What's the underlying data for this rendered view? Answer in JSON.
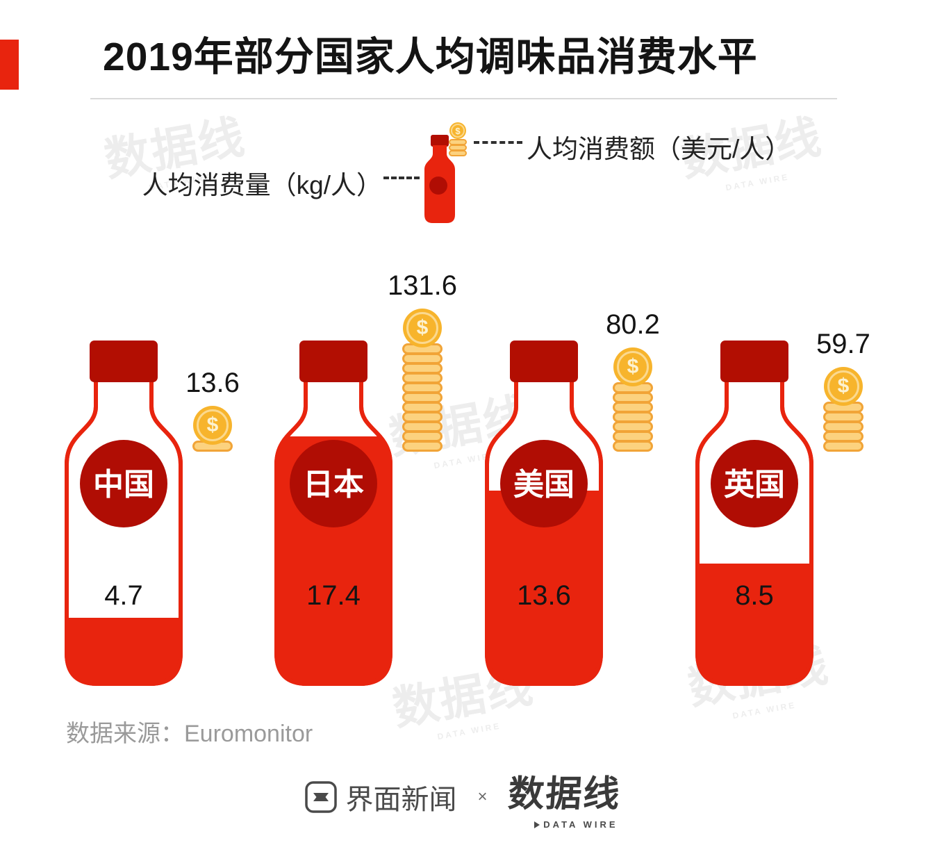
{
  "title": "2019年部分国家人均调味品消费水平",
  "legend": {
    "volume_label": "人均消费量（kg/人）",
    "value_label": "人均消费额（美元/人）"
  },
  "chart_data": {
    "type": "bar",
    "title": "2019年部分国家人均调味品消费水平",
    "categories": [
      "中国",
      "日本",
      "美国",
      "英国"
    ],
    "series": [
      {
        "name": "人均消费量（kg/人）",
        "unit": "kg/人",
        "values": [
          4.7,
          17.4,
          13.6,
          8.5
        ]
      },
      {
        "name": "人均消费额（美元/人）",
        "unit": "美元/人",
        "values": [
          13.6,
          131.6,
          80.2,
          59.7
        ]
      }
    ],
    "source": "Euromonitor",
    "legend_position": "top",
    "grid": false
  },
  "source_text": "数据来源：Euromonitor",
  "footer": {
    "jiemian_label": "界面新闻",
    "separator": "×",
    "datawire_cn": "数据线",
    "datawire_en": "DATA WIRE"
  },
  "watermark": {
    "cn": "数据线",
    "en": "DATA WIRE"
  },
  "icons": {
    "dollar": "$"
  },
  "colors": {
    "bottle_red": "#e8240e",
    "cap_dark_red": "#b20e02",
    "badge_dark_red": "#b00d04",
    "coin_gold": "#f7b42c",
    "coin_light": "#fcd27f",
    "coin_border": "#f1a437"
  }
}
